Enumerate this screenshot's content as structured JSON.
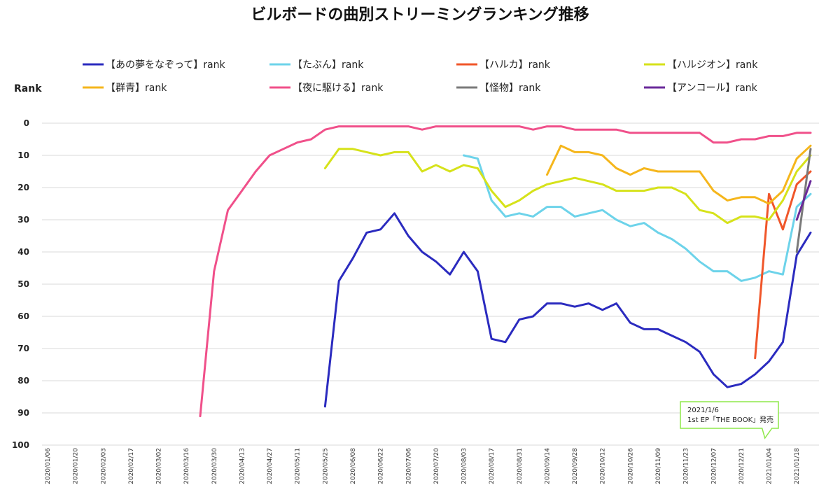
{
  "chart_data": {
    "type": "line",
    "title": "ビルボードの曲別ストリーミングランキング推移",
    "ylabel": "Rank",
    "xlabel": "",
    "ylim": [
      0,
      100
    ],
    "y_inverted": true,
    "yticks": [
      0,
      10,
      20,
      30,
      40,
      50,
      60,
      70,
      80,
      90,
      100
    ],
    "grid": true,
    "legend_position": "top",
    "x": [
      "2020/01/06",
      "2020/01/13",
      "2020/01/20",
      "2020/01/27",
      "2020/02/03",
      "2020/02/10",
      "2020/02/17",
      "2020/02/24",
      "2020/03/02",
      "2020/03/09",
      "2020/03/16",
      "2020/03/23",
      "2020/03/30",
      "2020/04/06",
      "2020/04/13",
      "2020/04/20",
      "2020/04/27",
      "2020/05/04",
      "2020/05/11",
      "2020/05/18",
      "2020/05/25",
      "2020/06/01",
      "2020/06/08",
      "2020/06/15",
      "2020/06/22",
      "2020/06/29",
      "2020/07/06",
      "2020/07/13",
      "2020/07/20",
      "2020/07/27",
      "2020/08/03",
      "2020/08/10",
      "2020/08/17",
      "2020/08/24",
      "2020/08/31",
      "2020/09/07",
      "2020/09/14",
      "2020/09/21",
      "2020/09/28",
      "2020/10/05",
      "2020/10/12",
      "2020/10/19",
      "2020/10/26",
      "2020/11/02",
      "2020/11/09",
      "2020/11/16",
      "2020/11/23",
      "2020/11/30",
      "2020/12/07",
      "2020/12/14",
      "2020/12/21",
      "2020/12/28",
      "2021/01/04",
      "2021/01/11",
      "2021/01/18",
      "2021/01/25"
    ],
    "x_tick_labels": [
      "2020/01/06",
      "2020/01/13",
      "2020/01/20",
      "2020/01/27",
      "2020/02/03",
      "2020/02/10",
      "2020/02/17",
      "2020/02/24",
      "2020/03/02",
      "2020/03/09",
      "2020/03/16",
      "2020/03/23",
      "2020/03/30",
      "2020/04/06",
      "2020/04/13",
      "2020/04/20",
      "2020/04/27",
      "2020/05/04",
      "2020/05/11",
      "2020/05/18",
      "2020/05/25",
      "2020/06/01",
      "2020/06/08",
      "2020/06/15",
      "2020/06/22",
      "2020/06/29",
      "2020/07/06",
      "2020/07/13",
      "2020/07/20",
      "2020/07/27",
      "2020/08/03",
      "2020/08/10",
      "2020/08/17",
      "2020/08/24",
      "2020/08/31",
      "2020/09/07",
      "2020/09/14",
      "2020/09/21",
      "2020/09/28",
      "2020/10/05",
      "2020/10/12",
      "2020/10/19",
      "2020/10/26",
      "2020/11/02",
      "2020/11/09",
      "2020/11/16",
      "2020/11/23",
      "2020/11/30",
      "2020/12/07",
      "2020/12/14",
      "2020/12/21",
      "2020/12/28",
      "2021/01/04",
      "2021/01/11",
      "2021/01/18",
      "2021/01/25"
    ],
    "x_label_stride": 2,
    "series": [
      {
        "name": "【あの夢をなぞって】rank",
        "color": "#2b2bbf",
        "values": [
          null,
          null,
          null,
          null,
          null,
          null,
          null,
          null,
          null,
          null,
          null,
          null,
          null,
          null,
          null,
          null,
          null,
          null,
          null,
          null,
          88,
          49,
          42,
          34,
          33,
          28,
          35,
          40,
          43,
          47,
          40,
          46,
          67,
          68,
          61,
          60,
          56,
          56,
          57,
          56,
          58,
          56,
          62,
          64,
          64,
          66,
          68,
          71,
          78,
          82,
          81,
          78,
          74,
          68,
          41,
          34
        ]
      },
      {
        "name": "【たぶん】rank",
        "color": "#6dd3ea",
        "values": [
          null,
          null,
          null,
          null,
          null,
          null,
          null,
          null,
          null,
          null,
          null,
          null,
          null,
          null,
          null,
          null,
          null,
          null,
          null,
          null,
          null,
          null,
          null,
          null,
          null,
          null,
          null,
          null,
          null,
          null,
          10,
          11,
          24,
          29,
          28,
          29,
          26,
          26,
          29,
          28,
          27,
          30,
          32,
          31,
          34,
          36,
          39,
          43,
          46,
          46,
          49,
          48,
          46,
          47,
          26,
          22
        ]
      },
      {
        "name": "【ハルカ】rank",
        "color": "#f0562a",
        "values": [
          null,
          null,
          null,
          null,
          null,
          null,
          null,
          null,
          null,
          null,
          null,
          null,
          null,
          null,
          null,
          null,
          null,
          null,
          null,
          null,
          null,
          null,
          null,
          null,
          null,
          null,
          null,
          null,
          null,
          null,
          null,
          null,
          null,
          null,
          null,
          null,
          null,
          null,
          null,
          null,
          null,
          null,
          null,
          null,
          null,
          null,
          null,
          null,
          null,
          null,
          null,
          73,
          22,
          33,
          19,
          15
        ]
      },
      {
        "name": "【ハルジオン】rank",
        "color": "#d6e21a",
        "values": [
          null,
          null,
          null,
          null,
          null,
          null,
          null,
          null,
          null,
          null,
          null,
          null,
          null,
          null,
          null,
          null,
          null,
          null,
          null,
          null,
          14,
          8,
          8,
          9,
          10,
          9,
          9,
          15,
          13,
          15,
          13,
          14,
          21,
          26,
          24,
          21,
          19,
          18,
          17,
          18,
          19,
          21,
          21,
          21,
          20,
          20,
          22,
          27,
          28,
          31,
          29,
          29,
          30,
          24,
          15,
          10
        ]
      },
      {
        "name": "【群青】rank",
        "color": "#f5b61c",
        "values": [
          null,
          null,
          null,
          null,
          null,
          null,
          null,
          null,
          null,
          null,
          null,
          null,
          null,
          null,
          null,
          null,
          null,
          null,
          null,
          null,
          null,
          null,
          null,
          null,
          null,
          null,
          null,
          null,
          null,
          null,
          null,
          null,
          null,
          null,
          null,
          null,
          16,
          7,
          9,
          9,
          10,
          14,
          16,
          14,
          15,
          15,
          15,
          15,
          21,
          24,
          23,
          23,
          25,
          21,
          11,
          7
        ]
      },
      {
        "name": "【夜に駆ける】rank",
        "color": "#f0508a",
        "values": [
          null,
          null,
          null,
          null,
          null,
          null,
          null,
          null,
          null,
          null,
          null,
          91,
          46,
          27,
          21,
          15,
          10,
          8,
          6,
          5,
          2,
          1,
          1,
          1,
          1,
          1,
          1,
          2,
          1,
          1,
          1,
          1,
          1,
          1,
          1,
          2,
          1,
          1,
          2,
          2,
          2,
          2,
          3,
          3,
          3,
          3,
          3,
          3,
          6,
          6,
          5,
          5,
          4,
          4,
          3,
          3
        ]
      },
      {
        "name": "【怪物】rank",
        "color": "#7a7a7a",
        "values": [
          null,
          null,
          null,
          null,
          null,
          null,
          null,
          null,
          null,
          null,
          null,
          null,
          null,
          null,
          null,
          null,
          null,
          null,
          null,
          null,
          null,
          null,
          null,
          null,
          null,
          null,
          null,
          null,
          null,
          null,
          null,
          null,
          null,
          null,
          null,
          null,
          null,
          null,
          null,
          null,
          null,
          null,
          null,
          null,
          null,
          null,
          null,
          null,
          null,
          null,
          null,
          null,
          null,
          null,
          40,
          8
        ]
      },
      {
        "name": "【アンコール】rank",
        "color": "#6a2a9a",
        "values": [
          null,
          null,
          null,
          null,
          null,
          null,
          null,
          null,
          null,
          null,
          null,
          null,
          null,
          null,
          null,
          null,
          null,
          null,
          null,
          null,
          null,
          null,
          null,
          null,
          null,
          null,
          null,
          null,
          null,
          null,
          null,
          null,
          null,
          null,
          null,
          null,
          null,
          null,
          null,
          null,
          null,
          null,
          null,
          null,
          null,
          null,
          null,
          null,
          null,
          null,
          null,
          null,
          null,
          null,
          30,
          18
        ]
      }
    ],
    "annotations": [
      {
        "x": "2020/12/28",
        "y": 92,
        "line1": "2021/1/6",
        "line2": "1st EP「THE BOOK」発売",
        "border_color": "#8ee84a"
      }
    ]
  }
}
